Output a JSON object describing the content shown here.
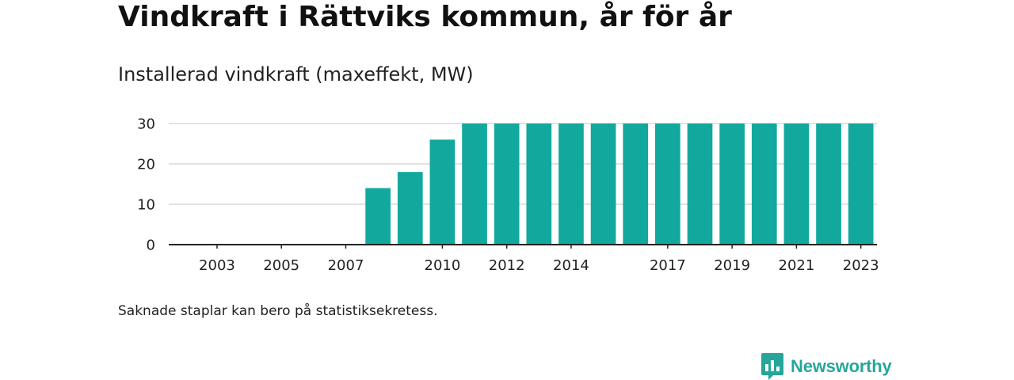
{
  "title": "Vindkraft i Rättviks kommun, år för år",
  "subtitle": "Installerad vindkraft (maxeffekt, MW)",
  "note": "Saknade staplar kan bero på statistiksekretess.",
  "brand": {
    "name": "Newsworthy",
    "icon": "newsworthy-logo-icon",
    "color": "#26a69a"
  },
  "colors": {
    "bar": "#12a89d",
    "grid": "#d9d9d9",
    "axis": "#222222"
  },
  "chart_data": {
    "type": "bar",
    "title": "",
    "xlabel": "",
    "ylabel": "",
    "ylim": [
      0,
      30
    ],
    "y_ticks": [
      0,
      10,
      20,
      30
    ],
    "grid": true,
    "categories": [
      "2002",
      "2003",
      "2004",
      "2005",
      "2006",
      "2007",
      "2008",
      "2009",
      "2010",
      "2011",
      "2012",
      "2013",
      "2014",
      "2015",
      "2016",
      "2017",
      "2018",
      "2019",
      "2020",
      "2021",
      "2022",
      "2023"
    ],
    "x_tick_labels": [
      "2003",
      "2005",
      "2007",
      "2010",
      "2012",
      "2014",
      "2017",
      "2019",
      "2021",
      "2023"
    ],
    "values": [
      0,
      0,
      0,
      0,
      0,
      0,
      14,
      18,
      26,
      30,
      30,
      30,
      30,
      30,
      30,
      30,
      30,
      30,
      30,
      30,
      30,
      30
    ]
  }
}
